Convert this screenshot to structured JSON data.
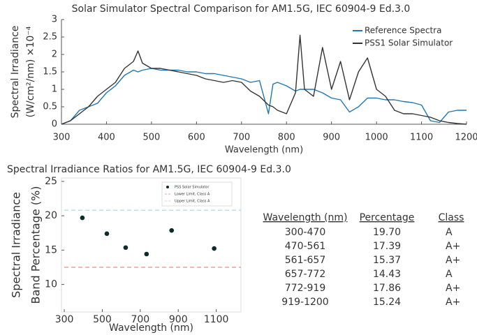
{
  "chart_data": [
    {
      "type": "line",
      "title": "Solar Simulator Spectral Comparison for AM1.5G, IEC 60904-9 Ed.3.0",
      "xlabel": "Wavelength (nm)",
      "ylabel": [
        "Spectral Irradiance",
        "(W/cm²/nm) ×10⁻⁴"
      ],
      "x": [
        300,
        320,
        340,
        360,
        380,
        400,
        420,
        440,
        460,
        470,
        480,
        500,
        520,
        540,
        560,
        580,
        600,
        620,
        640,
        660,
        680,
        700,
        720,
        740,
        760,
        770,
        780,
        800,
        820,
        830,
        840,
        860,
        880,
        900,
        920,
        940,
        960,
        980,
        1000,
        1020,
        1040,
        1060,
        1080,
        1100,
        1120,
        1140,
        1160,
        1180,
        1200
      ],
      "series": [
        {
          "name": "Reference Spectra",
          "color": "#1f77b4",
          "values": [
            0,
            0.1,
            0.4,
            0.5,
            0.6,
            0.9,
            1.1,
            1.4,
            1.55,
            1.5,
            1.55,
            1.6,
            1.55,
            1.55,
            1.55,
            1.5,
            1.5,
            1.45,
            1.45,
            1.4,
            1.35,
            1.3,
            1.2,
            1.25,
            0.3,
            1.15,
            1.2,
            1.1,
            0.95,
            1.0,
            1.0,
            1.0,
            0.9,
            0.75,
            0.7,
            0.35,
            0.5,
            0.75,
            0.75,
            0.7,
            0.7,
            0.65,
            0.62,
            0.55,
            0.1,
            0.05,
            0.35,
            0.4,
            0.4
          ]
        },
        {
          "name": "PSS1 Solar Simulator",
          "color": "#333333",
          "values": [
            0,
            0.1,
            0.3,
            0.5,
            0.8,
            1.0,
            1.2,
            1.6,
            1.8,
            2.1,
            1.75,
            1.6,
            1.6,
            1.55,
            1.5,
            1.45,
            1.4,
            1.3,
            1.25,
            1.2,
            1.25,
            1.2,
            0.95,
            0.8,
            0.55,
            0.5,
            0.4,
            0.3,
            0.9,
            2.55,
            1.0,
            0.8,
            2.2,
            1.0,
            1.8,
            0.7,
            1.5,
            1.9,
            1.0,
            0.8,
            0.4,
            0.3,
            0.3,
            0.25,
            0.2,
            0.1,
            0.05,
            0.02,
            0.0
          ]
        }
      ],
      "xlim": [
        300,
        1200
      ],
      "xticks": [
        300,
        400,
        500,
        600,
        700,
        800,
        900,
        1000,
        1100,
        1200
      ],
      "ylim": [
        0,
        3
      ],
      "yticks": [
        0,
        0.5,
        1,
        1.5,
        2,
        2.5,
        3
      ],
      "legend": "upper right"
    },
    {
      "type": "scatter",
      "title": "Spectral Irradiance Ratios for AM1.5G, IEC 60904-9 Ed.3.0",
      "xlabel": "Wavelength (nm)",
      "ylabel": [
        "Spectral Irradiance",
        "Band Percentage (%)"
      ],
      "series": [
        {
          "name": "PSS Solar Simulator",
          "color": "#0d2b2b",
          "mark": "point",
          "x": [
            395,
            524,
            623,
            733,
            865,
            1089
          ],
          "values": [
            19.7,
            17.39,
            15.37,
            14.43,
            17.86,
            15.24
          ]
        },
        {
          "name": "Lower Limit, Class A",
          "color": "#f4a090",
          "mark": "dashed",
          "x": [
            300,
            1230
          ],
          "values": [
            12.5,
            12.5
          ]
        },
        {
          "name": "Upper Limit, Class A",
          "color": "#b8dcf0",
          "mark": "dashed",
          "x": [
            300,
            1230
          ],
          "values": [
            20.8,
            20.8
          ]
        }
      ],
      "xlim": [
        285,
        1230
      ],
      "xticks": [
        300,
        500,
        700,
        900,
        1100
      ],
      "ylim": [
        6,
        25.5
      ],
      "yticks": [
        10,
        15,
        20,
        25
      ],
      "legend": "upper right"
    }
  ],
  "table": {
    "header": [
      "Wavelength (nm)",
      "Percentage",
      "Class"
    ],
    "rows": [
      [
        "300-470",
        "19.70",
        "A"
      ],
      [
        "470-561",
        "17.39",
        "A+"
      ],
      [
        "561-657",
        "15.37",
        "A+"
      ],
      [
        "657-772",
        "14.43",
        "A"
      ],
      [
        "772-919",
        "17.86",
        "A+"
      ],
      [
        "919-1200",
        "15.24",
        "A+"
      ]
    ]
  }
}
